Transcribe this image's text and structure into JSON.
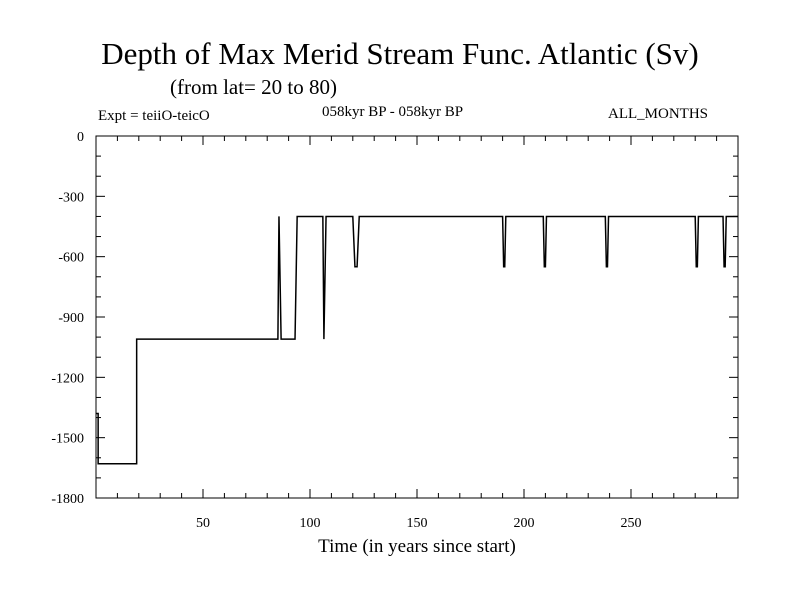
{
  "chart_data": {
    "type": "line",
    "title": "Depth of Max Merid Stream Func. Atlantic (Sv)",
    "subtitle": "(from lat= 20 to 80)",
    "expt_label": "Expt = teiiO-teicO",
    "range_label": "058kyr BP - 058kyr BP",
    "months_label": "ALL_MONTHS",
    "xlabel": "Time (in years since start)",
    "ylabel": "",
    "xlim": [
      0,
      300
    ],
    "ylim": [
      -1800,
      0
    ],
    "x_ticks": [
      50,
      100,
      150,
      200,
      250
    ],
    "y_ticks": [
      0,
      -300,
      -600,
      -900,
      -1200,
      -1500,
      -1800
    ],
    "grid": false,
    "series": [
      {
        "color": "#000000",
        "x": [
          0,
          1,
          1,
          19,
          19,
          85,
          85.5,
          86.5,
          87,
          93,
          94,
          106,
          106.5,
          107.5,
          108,
          120,
          121,
          122,
          123,
          190,
          190.5,
          191,
          191.5,
          209,
          209.5,
          210,
          210.5,
          238,
          238.5,
          239,
          239.5,
          280,
          280.5,
          281,
          281.5,
          293,
          293.5,
          294,
          294.5,
          300
        ],
        "y": [
          -1380,
          -1380,
          -1630,
          -1630,
          -1010,
          -1010,
          -400,
          -1010,
          -1010,
          -1010,
          -400,
          -400,
          -1010,
          -400,
          -400,
          -400,
          -650,
          -650,
          -400,
          -400,
          -650,
          -650,
          -400,
          -400,
          -650,
          -650,
          -400,
          -400,
          -650,
          -650,
          -400,
          -400,
          -650,
          -650,
          -400,
          -400,
          -650,
          -650,
          -400,
          -400
        ]
      }
    ]
  }
}
